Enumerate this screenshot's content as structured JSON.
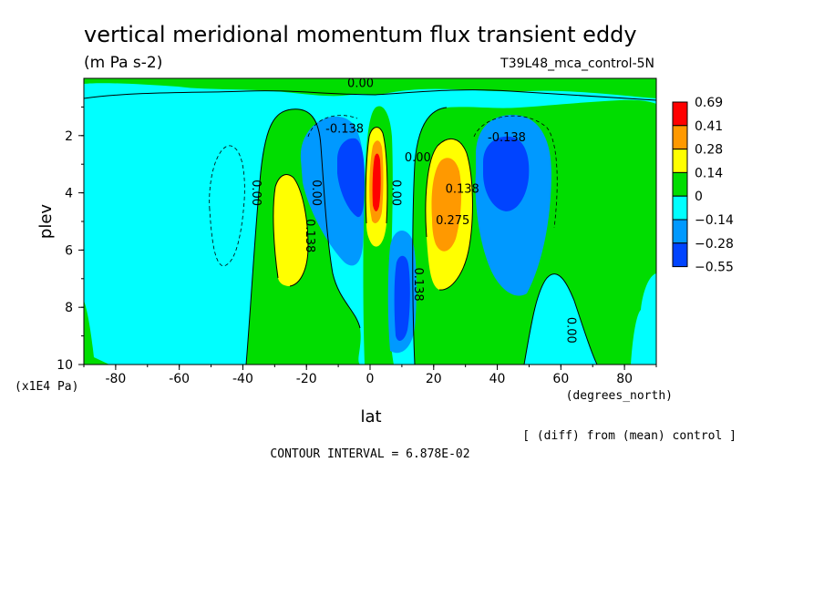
{
  "chart_data": {
    "type": "heatmap",
    "title": "vertical meridional momentum flux transient eddy",
    "units": "(m Pa s-2)",
    "run_label": "T39L48_mca_control-5N",
    "xlabel": "lat",
    "x_units": "(degrees_north)",
    "ylabel": "plev",
    "y_units": "(x1E4 Pa)",
    "x_ticks": [
      "-80",
      "-60",
      "-40",
      "-20",
      "0",
      "20",
      "40",
      "60",
      "80"
    ],
    "y_ticks": [
      "2",
      "4",
      "6",
      "8",
      "10"
    ],
    "xlim": [
      -90,
      90
    ],
    "ylim": [
      10,
      0
    ],
    "y_inverted": true,
    "diff_note": "[ (diff) from (mean) control ]",
    "contour_interval": "CONTOUR INTERVAL = 6.878E-02",
    "legend": {
      "placement": "right",
      "labels": [
        "0.69",
        "0.41",
        "0.28",
        "0.14",
        "0",
        "−0.14",
        "−0.28",
        "−0.55"
      ],
      "colors": [
        "#ff0000",
        "#ff9900",
        "#ffff00",
        "#00dd00",
        "#00ffff",
        "#0099ff",
        "#0044ff"
      ]
    },
    "contour_labels": [
      {
        "text": "0.00",
        "lat": -3,
        "p": 0.3
      },
      {
        "text": "-0.138",
        "lat": -8,
        "p": 1.9
      },
      {
        "text": "-0.138",
        "lat": 43,
        "p": 2.2
      },
      {
        "text": "0.00",
        "lat": -37,
        "p": 4.0
      },
      {
        "text": "0.00",
        "lat": -18,
        "p": 4.0
      },
      {
        "text": "0.138",
        "lat": -20,
        "p": 5.5
      },
      {
        "text": "0.00",
        "lat": 7,
        "p": 4.0
      },
      {
        "text": "0.00",
        "lat": 15,
        "p": 2.9
      },
      {
        "text": "0.138",
        "lat": 14,
        "p": 7.2
      },
      {
        "text": "0.138",
        "lat": 29,
        "p": 4.0
      },
      {
        "text": "0.275",
        "lat": 26,
        "p": 5.1
      },
      {
        "text": "0.00",
        "lat": 62,
        "p": 8.8
      }
    ],
    "features": [
      {
        "name": "positive lobe",
        "lat": -25,
        "p": 5.5,
        "peak_class": "0.14 to 0.28"
      },
      {
        "name": "negative lobe",
        "lat": -5,
        "p": 3.5,
        "peak_class": "-0.28 to -0.55"
      },
      {
        "name": "positive core",
        "lat": 3,
        "p": 3.5,
        "peak_class": "0.41 to 0.69"
      },
      {
        "name": "negative core",
        "lat": 10,
        "p": 8,
        "peak_class": "-0.28 to -0.55"
      },
      {
        "name": "positive lobe",
        "lat": 23,
        "p": 4.2,
        "peak_class": "0.28 to 0.41"
      },
      {
        "name": "negative lobe",
        "lat": 42,
        "p": 3.8,
        "peak_class": "-0.28 to -0.55"
      }
    ]
  }
}
